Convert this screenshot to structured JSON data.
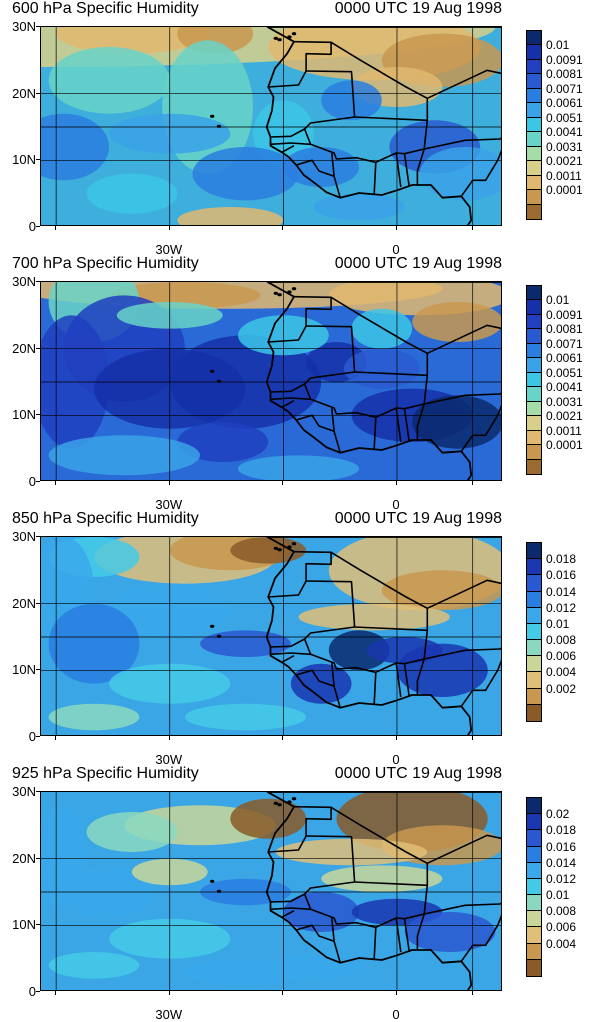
{
  "figure": {
    "time_label": "0000 UTC 19 Aug 1998",
    "lat_labels": [
      "30N",
      "20N",
      "10N",
      "0"
    ],
    "lon_labels": [
      "30W",
      "0"
    ]
  },
  "panels": [
    {
      "title": "600 hPa Specific Humidity",
      "time": "0000 UTC 19 Aug 1998",
      "colorbar_labels": [
        "0.01",
        "0.0091",
        "0.0081",
        "0.0071",
        "0.0061",
        "0.0051",
        "0.0041",
        "0.0031",
        "0.0021",
        "0.0011",
        "0.0001"
      ],
      "colorbar_colors": [
        "#0b2a6e",
        "#1530a8",
        "#2040c0",
        "#2a5ad0",
        "#2a7ee0",
        "#3aa2e8",
        "#3cc6e6",
        "#68d4c8",
        "#a6dca8",
        "#d8d08a",
        "#e0b870",
        "#c89850",
        "#9a6a30"
      ],
      "background": "#3eaedc"
    },
    {
      "title": "700 hPa Specific Humidity",
      "time": "0000 UTC 19 Aug 1998",
      "colorbar_labels": [
        "0.01",
        "0.0091",
        "0.0081",
        "0.0071",
        "0.0061",
        "0.0051",
        "0.0041",
        "0.0031",
        "0.0021",
        "0.0011",
        "0.0001"
      ],
      "colorbar_colors": [
        "#0b2a6e",
        "#1530a8",
        "#2040c0",
        "#2a5ad0",
        "#2a7ee0",
        "#3aa2e8",
        "#3cc6e6",
        "#68d4c8",
        "#a6dca8",
        "#d8d08a",
        "#e0b870",
        "#c89850",
        "#9a6a30"
      ],
      "background": "#2a6ad6"
    },
    {
      "title": "850 hPa Specific Humidity",
      "time": "0000 UTC 19 Aug 1998",
      "colorbar_labels": [
        "0.018",
        "0.016",
        "0.014",
        "0.012",
        "0.01",
        "0.008",
        "0.006",
        "0.004",
        "0.002"
      ],
      "colorbar_colors": [
        "#0b2a6e",
        "#1a36b0",
        "#2a58d0",
        "#2a7ee0",
        "#3aa8ea",
        "#44cae6",
        "#8ad8c0",
        "#c8d69a",
        "#e0c078",
        "#c89850",
        "#8a5a28"
      ],
      "background": "#3aa6e6"
    },
    {
      "title": "925 hPa Specific Humidity",
      "time": "0000 UTC 19 Aug 1998",
      "colorbar_labels": [
        "0.02",
        "0.018",
        "0.016",
        "0.014",
        "0.012",
        "0.01",
        "0.008",
        "0.006",
        "0.004"
      ],
      "colorbar_colors": [
        "#0b2a6e",
        "#1a36b0",
        "#2a58d0",
        "#2a7ee0",
        "#3aa8ea",
        "#44cae6",
        "#8ad8c0",
        "#c8d69a",
        "#e0c078",
        "#c89850",
        "#8a5a28"
      ],
      "background": "#3aa6e6"
    }
  ]
}
